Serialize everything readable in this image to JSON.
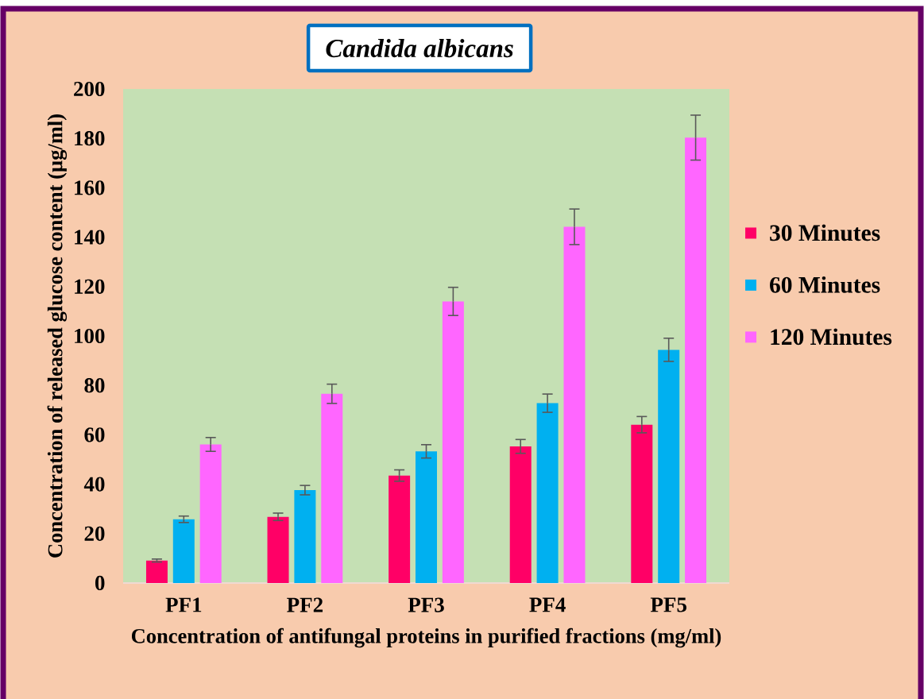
{
  "chart_data": {
    "type": "bar",
    "title": "Candida albicans",
    "xlabel": "Concentration of antifungal proteins in purified fractions (mg/ml)",
    "ylabel": "Concentration of released glucose content (µg/ml)",
    "categories": [
      "PF1",
      "PF2",
      "PF3",
      "PF4",
      "PF5"
    ],
    "series": [
      {
        "name": "30 Minutes",
        "color": "#ff0066",
        "values": [
          9.1,
          26.8,
          43.5,
          55.3,
          64.1
        ],
        "errors": [
          0.6,
          1.5,
          2.3,
          2.8,
          3.3
        ]
      },
      {
        "name": "60 Minutes",
        "color": "#00b0f0",
        "values": [
          25.8,
          37.6,
          53.3,
          72.8,
          94.4
        ],
        "errors": [
          1.3,
          1.9,
          2.7,
          3.7,
          4.7
        ]
      },
      {
        "name": "120 Minutes",
        "color": "#ff66ff",
        "values": [
          56.1,
          76.6,
          114.0,
          144.2,
          180.3
        ],
        "errors": [
          2.8,
          3.9,
          5.7,
          7.2,
          9.1
        ]
      }
    ],
    "ylim": [
      0,
      200
    ],
    "yticks": [
      0,
      20,
      40,
      60,
      80,
      100,
      120,
      140,
      160,
      180,
      200
    ],
    "legend": "right"
  }
}
